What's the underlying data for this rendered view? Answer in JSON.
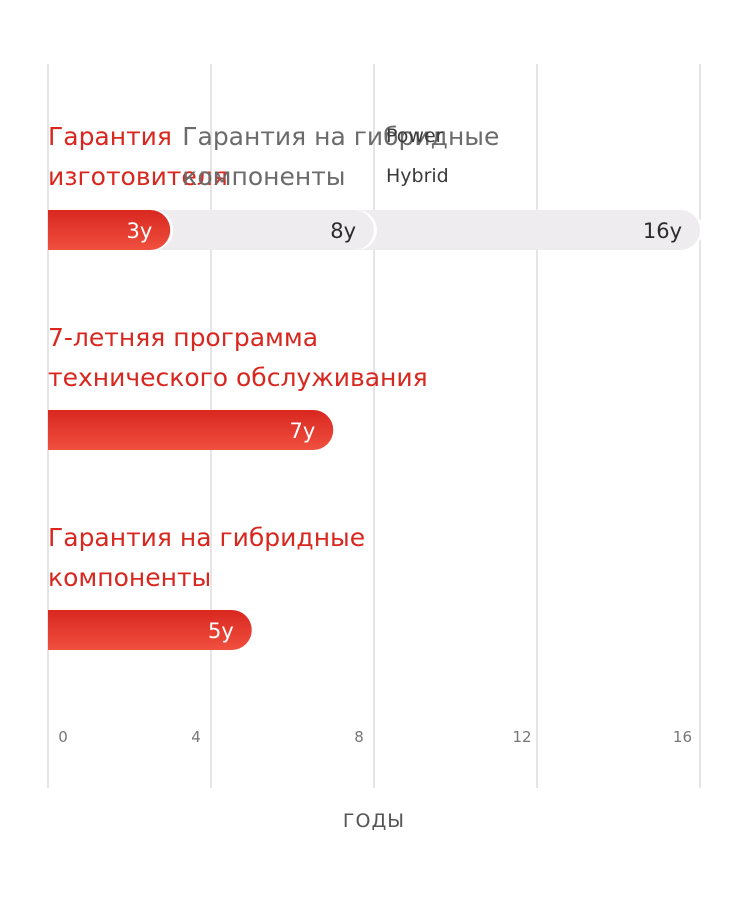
{
  "chart_data": {
    "type": "bar",
    "xlabel": "ГОДЫ",
    "xlim": [
      0,
      16
    ],
    "xticks": [
      "0",
      "4",
      "8",
      "12",
      "16"
    ],
    "grid": true,
    "colors": {
      "accent": "#d8271f",
      "accent_light": "#ee4a3c",
      "track": "#eeecee",
      "grid": "#e5e5e5",
      "label_gray": "#6b6b6b"
    },
    "groups": [
      {
        "type": "stacked",
        "bars": [
          {
            "label_lines": [
              "Гарантия",
              "изготовителя"
            ],
            "value": 3,
            "value_label": "3y",
            "style": "red"
          },
          {
            "label_lines": [
              "Гарантия на гибридные",
              "компоненты"
            ],
            "value": 8,
            "value_label": "8y",
            "style": "gray"
          },
          {
            "label_lines": [
              "Power",
              "Hybrid"
            ],
            "value": 16,
            "value_label": "16y",
            "style": "gray"
          }
        ]
      },
      {
        "type": "single",
        "bars": [
          {
            "label_lines": [
              "7-летняя программа",
              "технического обслуживания"
            ],
            "value": 7,
            "value_label": "7y",
            "style": "red"
          }
        ]
      },
      {
        "type": "single",
        "bars": [
          {
            "label_lines": [
              "Гарантия на гибридные",
              "компоненты"
            ],
            "value": 5,
            "value_label": "5y",
            "style": "red"
          }
        ]
      }
    ]
  }
}
